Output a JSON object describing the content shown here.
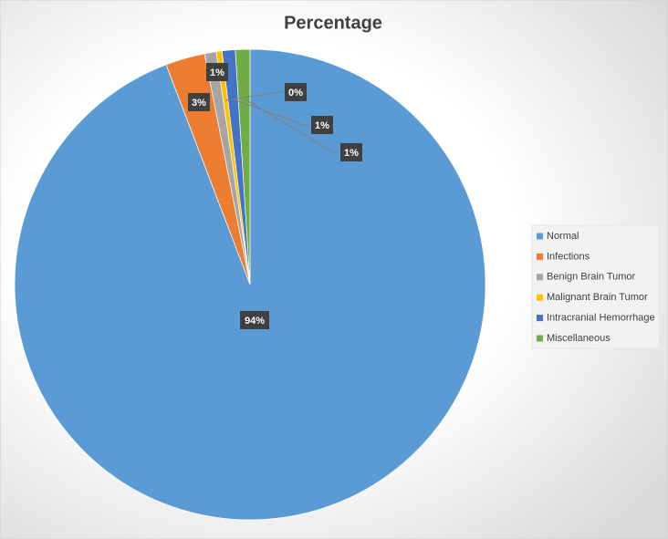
{
  "chart_data": {
    "type": "pie",
    "title": "Percentage",
    "categories": [
      "Normal",
      "Infections",
      "Benign Brain Tumor",
      "Malignant Brain Tumor",
      "Intracranial Hemorrhage",
      "Miscellaneous"
    ],
    "values": [
      94.2,
      2.7,
      0.8,
      0.4,
      0.9,
      1.0
    ],
    "value_labels": [
      "94%",
      "3%",
      "1%",
      "0%",
      "1%",
      "1%"
    ],
    "colors": [
      "#5b9bd5",
      "#ed7d31",
      "#a5a5a5",
      "#ffc000",
      "#4472c4",
      "#70ad47"
    ],
    "legend": "right"
  }
}
